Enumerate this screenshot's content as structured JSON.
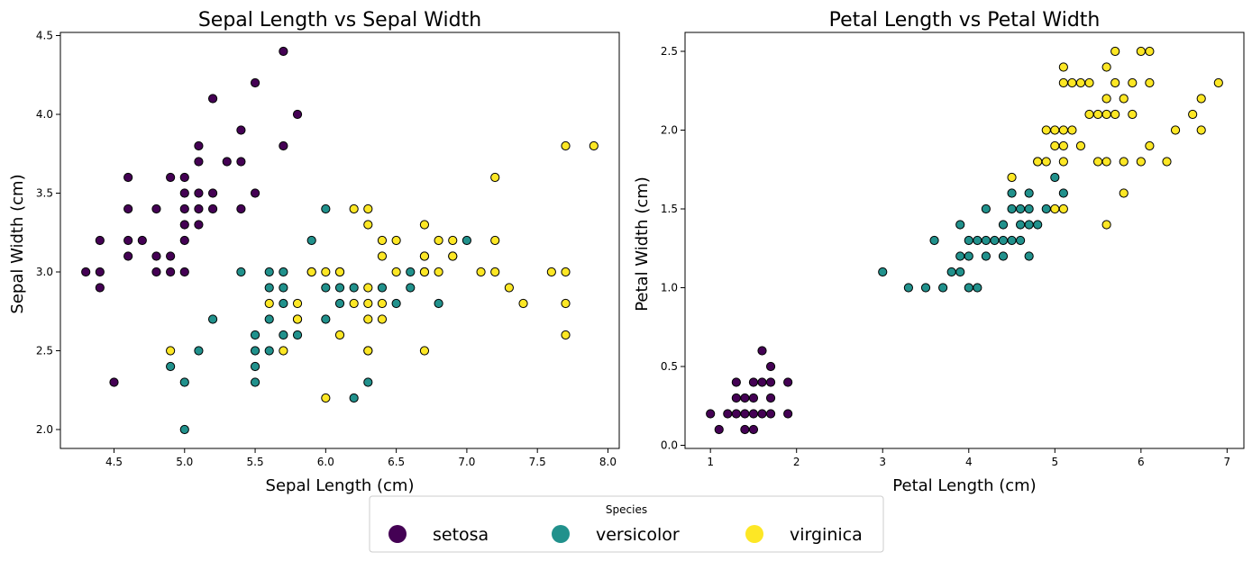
{
  "chart_data": [
    {
      "type": "scatter",
      "title": "Sepal Length vs Sepal Width",
      "xlabel": "Sepal Length (cm)",
      "ylabel": "Sepal Width (cm)",
      "xlim": [
        4.12,
        8.08
      ],
      "ylim": [
        1.88,
        4.52
      ],
      "xticks": [
        "4.5",
        "5.0",
        "5.5",
        "6.0",
        "6.5",
        "7.0",
        "7.5",
        "8.0"
      ],
      "yticks": [
        "2.0",
        "2.5",
        "3.0",
        "3.5",
        "4.0",
        "4.5"
      ],
      "grid": false,
      "series": [
        {
          "name": "setosa",
          "points": [
            [
              4.3,
              3.0
            ],
            [
              4.4,
              3.2
            ],
            [
              4.4,
              3.0
            ],
            [
              4.4,
              2.9
            ],
            [
              4.5,
              2.3
            ],
            [
              4.6,
              3.6
            ],
            [
              4.6,
              3.4
            ],
            [
              4.6,
              3.2
            ],
            [
              4.6,
              3.1
            ],
            [
              4.7,
              3.2
            ],
            [
              4.8,
              3.4
            ],
            [
              4.8,
              3.1
            ],
            [
              4.8,
              3.0
            ],
            [
              4.9,
              3.6
            ],
            [
              4.9,
              3.1
            ],
            [
              4.9,
              3.0
            ],
            [
              5.0,
              3.6
            ],
            [
              5.0,
              3.5
            ],
            [
              5.0,
              3.4
            ],
            [
              5.0,
              3.3
            ],
            [
              5.0,
              3.2
            ],
            [
              5.0,
              3.0
            ],
            [
              5.1,
              3.8
            ],
            [
              5.1,
              3.7
            ],
            [
              5.1,
              3.5
            ],
            [
              5.1,
              3.4
            ],
            [
              5.1,
              3.3
            ],
            [
              5.2,
              4.1
            ],
            [
              5.2,
              3.5
            ],
            [
              5.2,
              3.4
            ],
            [
              5.3,
              3.7
            ],
            [
              5.4,
              3.9
            ],
            [
              5.4,
              3.7
            ],
            [
              5.4,
              3.4
            ],
            [
              5.5,
              4.2
            ],
            [
              5.5,
              3.5
            ],
            [
              5.7,
              4.4
            ],
            [
              5.7,
              3.8
            ],
            [
              5.8,
              4.0
            ]
          ]
        },
        {
          "name": "versicolor",
          "points": [
            [
              4.9,
              2.4
            ],
            [
              5.0,
              2.3
            ],
            [
              5.0,
              2.0
            ],
            [
              5.1,
              2.5
            ],
            [
              5.2,
              2.7
            ],
            [
              5.4,
              3.0
            ],
            [
              5.5,
              2.6
            ],
            [
              5.5,
              2.5
            ],
            [
              5.5,
              2.4
            ],
            [
              5.5,
              2.3
            ],
            [
              5.6,
              3.0
            ],
            [
              5.6,
              2.9
            ],
            [
              5.6,
              2.7
            ],
            [
              5.6,
              2.5
            ],
            [
              5.7,
              3.0
            ],
            [
              5.7,
              2.9
            ],
            [
              5.7,
              2.8
            ],
            [
              5.7,
              2.6
            ],
            [
              5.8,
              2.7
            ],
            [
              5.8,
              2.6
            ],
            [
              5.9,
              3.2
            ],
            [
              5.9,
              3.0
            ],
            [
              6.0,
              3.4
            ],
            [
              6.0,
              2.9
            ],
            [
              6.0,
              2.7
            ],
            [
              6.1,
              3.0
            ],
            [
              6.1,
              2.9
            ],
            [
              6.1,
              2.8
            ],
            [
              6.2,
              2.9
            ],
            [
              6.2,
              2.2
            ],
            [
              6.3,
              2.5
            ],
            [
              6.3,
              2.3
            ],
            [
              6.4,
              2.9
            ],
            [
              6.5,
              2.8
            ],
            [
              6.6,
              3.0
            ],
            [
              6.6,
              2.9
            ],
            [
              6.7,
              3.1
            ],
            [
              6.7,
              3.0
            ],
            [
              6.8,
              2.8
            ],
            [
              6.9,
              3.1
            ],
            [
              7.0,
              3.2
            ]
          ]
        },
        {
          "name": "virginica",
          "points": [
            [
              4.9,
              2.5
            ],
            [
              5.6,
              2.8
            ],
            [
              5.7,
              2.5
            ],
            [
              5.8,
              2.8
            ],
            [
              5.8,
              2.7
            ],
            [
              5.9,
              3.0
            ],
            [
              6.0,
              3.0
            ],
            [
              6.0,
              2.2
            ],
            [
              6.1,
              3.0
            ],
            [
              6.1,
              2.6
            ],
            [
              6.2,
              3.4
            ],
            [
              6.2,
              2.8
            ],
            [
              6.3,
              3.4
            ],
            [
              6.3,
              3.3
            ],
            [
              6.3,
              2.9
            ],
            [
              6.3,
              2.8
            ],
            [
              6.3,
              2.7
            ],
            [
              6.3,
              2.5
            ],
            [
              6.4,
              3.2
            ],
            [
              6.4,
              3.1
            ],
            [
              6.4,
              2.8
            ],
            [
              6.4,
              2.7
            ],
            [
              6.5,
              3.2
            ],
            [
              6.5,
              3.0
            ],
            [
              6.7,
              3.3
            ],
            [
              6.7,
              3.1
            ],
            [
              6.7,
              3.0
            ],
            [
              6.7,
              2.5
            ],
            [
              6.8,
              3.2
            ],
            [
              6.8,
              3.0
            ],
            [
              6.9,
              3.2
            ],
            [
              6.9,
              3.1
            ],
            [
              7.1,
              3.0
            ],
            [
              7.2,
              3.6
            ],
            [
              7.2,
              3.2
            ],
            [
              7.2,
              3.0
            ],
            [
              7.3,
              2.9
            ],
            [
              7.4,
              2.8
            ],
            [
              7.6,
              3.0
            ],
            [
              7.7,
              3.8
            ],
            [
              7.7,
              3.0
            ],
            [
              7.7,
              2.8
            ],
            [
              7.7,
              2.6
            ],
            [
              7.9,
              3.8
            ]
          ]
        }
      ]
    },
    {
      "type": "scatter",
      "title": "Petal Length vs Petal Width",
      "xlabel": "Petal Length (cm)",
      "ylabel": "Petal Width (cm)",
      "xlim": [
        0.705,
        7.195
      ],
      "ylim": [
        -0.02,
        2.62
      ],
      "xticks": [
        "1",
        "2",
        "3",
        "4",
        "5",
        "6",
        "7"
      ],
      "yticks": [
        "0.0",
        "0.5",
        "1.0",
        "1.5",
        "2.0",
        "2.5"
      ],
      "grid": false,
      "series": [
        {
          "name": "setosa",
          "points": [
            [
              1.0,
              0.2
            ],
            [
              1.1,
              0.1
            ],
            [
              1.2,
              0.2
            ],
            [
              1.3,
              0.4
            ],
            [
              1.3,
              0.3
            ],
            [
              1.3,
              0.2
            ],
            [
              1.4,
              0.3
            ],
            [
              1.4,
              0.2
            ],
            [
              1.4,
              0.1
            ],
            [
              1.5,
              0.4
            ],
            [
              1.5,
              0.3
            ],
            [
              1.5,
              0.2
            ],
            [
              1.5,
              0.1
            ],
            [
              1.6,
              0.6
            ],
            [
              1.6,
              0.4
            ],
            [
              1.6,
              0.2
            ],
            [
              1.7,
              0.5
            ],
            [
              1.7,
              0.4
            ],
            [
              1.7,
              0.3
            ],
            [
              1.7,
              0.2
            ],
            [
              1.9,
              0.4
            ],
            [
              1.9,
              0.2
            ]
          ]
        },
        {
          "name": "versicolor",
          "points": [
            [
              3.0,
              1.1
            ],
            [
              3.3,
              1.0
            ],
            [
              3.5,
              1.0
            ],
            [
              3.6,
              1.3
            ],
            [
              3.7,
              1.0
            ],
            [
              3.8,
              1.1
            ],
            [
              3.9,
              1.4
            ],
            [
              3.9,
              1.2
            ],
            [
              3.9,
              1.1
            ],
            [
              4.0,
              1.3
            ],
            [
              4.0,
              1.2
            ],
            [
              4.0,
              1.0
            ],
            [
              4.1,
              1.3
            ],
            [
              4.1,
              1.0
            ],
            [
              4.2,
              1.5
            ],
            [
              4.2,
              1.3
            ],
            [
              4.2,
              1.2
            ],
            [
              4.3,
              1.3
            ],
            [
              4.4,
              1.4
            ],
            [
              4.4,
              1.3
            ],
            [
              4.4,
              1.2
            ],
            [
              4.5,
              1.6
            ],
            [
              4.5,
              1.5
            ],
            [
              4.5,
              1.3
            ],
            [
              4.6,
              1.5
            ],
            [
              4.6,
              1.4
            ],
            [
              4.6,
              1.3
            ],
            [
              4.7,
              1.6
            ],
            [
              4.7,
              1.5
            ],
            [
              4.7,
              1.4
            ],
            [
              4.7,
              1.2
            ],
            [
              4.8,
              1.4
            ],
            [
              4.8,
              1.8
            ],
            [
              4.9,
              1.5
            ],
            [
              5.0,
              1.7
            ],
            [
              5.1,
              1.6
            ]
          ]
        },
        {
          "name": "virginica",
          "points": [
            [
              4.5,
              1.7
            ],
            [
              4.8,
              1.8
            ],
            [
              4.9,
              2.0
            ],
            [
              4.9,
              1.8
            ],
            [
              5.0,
              2.0
            ],
            [
              5.0,
              1.9
            ],
            [
              5.0,
              1.5
            ],
            [
              5.1,
              2.4
            ],
            [
              5.1,
              2.3
            ],
            [
              5.1,
              2.0
            ],
            [
              5.1,
              1.9
            ],
            [
              5.1,
              1.8
            ],
            [
              5.1,
              1.5
            ],
            [
              5.2,
              2.3
            ],
            [
              5.2,
              2.0
            ],
            [
              5.3,
              2.3
            ],
            [
              5.3,
              1.9
            ],
            [
              5.4,
              2.3
            ],
            [
              5.4,
              2.1
            ],
            [
              5.5,
              2.1
            ],
            [
              5.5,
              1.8
            ],
            [
              5.6,
              2.4
            ],
            [
              5.6,
              2.2
            ],
            [
              5.6,
              2.1
            ],
            [
              5.6,
              1.8
            ],
            [
              5.6,
              1.4
            ],
            [
              5.7,
              2.5
            ],
            [
              5.7,
              2.3
            ],
            [
              5.7,
              2.1
            ],
            [
              5.8,
              2.2
            ],
            [
              5.8,
              1.8
            ],
            [
              5.8,
              1.6
            ],
            [
              5.9,
              2.3
            ],
            [
              5.9,
              2.1
            ],
            [
              6.0,
              2.5
            ],
            [
              6.0,
              1.8
            ],
            [
              6.1,
              2.5
            ],
            [
              6.1,
              2.3
            ],
            [
              6.1,
              1.9
            ],
            [
              6.3,
              1.8
            ],
            [
              6.4,
              2.0
            ],
            [
              6.6,
              2.1
            ],
            [
              6.7,
              2.2
            ],
            [
              6.7,
              2.0
            ],
            [
              6.9,
              2.3
            ]
          ]
        }
      ]
    }
  ],
  "legend": {
    "title": "Species",
    "placement": "bottom-center",
    "items": [
      "setosa",
      "versicolor",
      "virginica"
    ]
  },
  "colors": {
    "setosa": "#440154",
    "versicolor": "#21918c",
    "virginica": "#fde725",
    "edge": "#000000"
  }
}
